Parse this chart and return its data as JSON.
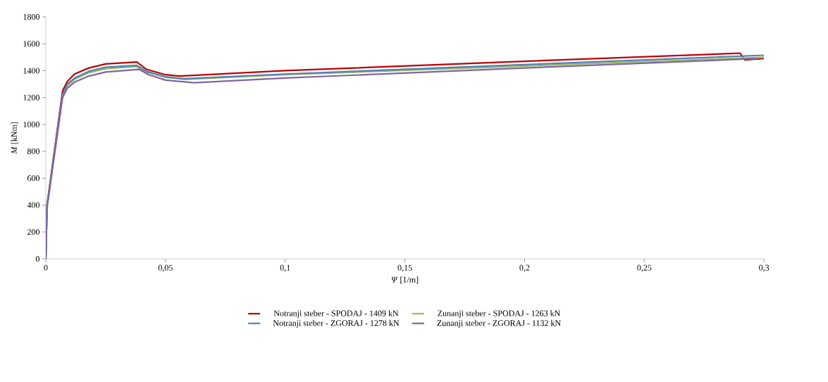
{
  "chart_data": {
    "type": "line",
    "xlabel": "*Ψ* [1/m]",
    "ylabel": "*M* [kNm]",
    "xlim": [
      0,
      0.3
    ],
    "ylim": [
      0,
      1800
    ],
    "xticks": [
      0,
      {
        "value": 0.05,
        "label": "0,05"
      },
      {
        "value": 0.1,
        "label": "0,1"
      },
      {
        "value": 0.15,
        "label": "0,15"
      },
      {
        "value": 0.2,
        "label": "0,2"
      },
      {
        "value": 0.25,
        "label": "0,25"
      },
      {
        "value": 0.3,
        "label": "0,3"
      }
    ],
    "yticks": [
      0,
      200,
      400,
      600,
      800,
      1000,
      1200,
      1400,
      1600,
      1800
    ],
    "grid": false,
    "legend": "bottom",
    "marker": "none",
    "line_style": "solid",
    "series": [
      {
        "name": "Notranji steber - SPODAJ - 1409 kN",
        "color": "#c00000",
        "x": [
          0,
          0.0005,
          0.007,
          0.009,
          0.012,
          0.018,
          0.025,
          0.038,
          0.042,
          0.05,
          0.056,
          0.1,
          0.2,
          0.29,
          0.292,
          0.3
        ],
        "values": [
          0,
          400,
          1250,
          1320,
          1375,
          1420,
          1450,
          1465,
          1410,
          1370,
          1360,
          1400,
          1470,
          1530,
          1480,
          1490
        ]
      },
      {
        "name": "Zunanji steber - SPODAJ - 1263 kN",
        "color": "#9bbb59",
        "x": [
          0,
          0.0005,
          0.007,
          0.009,
          0.012,
          0.018,
          0.025,
          0.038,
          0.042,
          0.05,
          0.058,
          0.1,
          0.2,
          0.3
        ],
        "values": [
          0,
          390,
          1220,
          1290,
          1335,
          1385,
          1415,
          1430,
          1390,
          1350,
          1335,
          1370,
          1435,
          1500
        ]
      },
      {
        "name": "Notranji steber - ZGORAJ - 1278 kN",
        "color": "#4f81bd",
        "x": [
          0,
          0.0005,
          0.007,
          0.009,
          0.012,
          0.018,
          0.025,
          0.038,
          0.042,
          0.05,
          0.058,
          0.1,
          0.2,
          0.3
        ],
        "values": [
          0,
          390,
          1225,
          1300,
          1345,
          1395,
          1425,
          1440,
          1395,
          1355,
          1340,
          1375,
          1445,
          1515
        ]
      },
      {
        "name": "Zunanji steber - ZGORAJ - 1132 kN",
        "color": "#8064a2",
        "x": [
          0,
          0.0005,
          0.007,
          0.009,
          0.012,
          0.018,
          0.025,
          0.039,
          0.043,
          0.05,
          0.062,
          0.1,
          0.2,
          0.297
        ],
        "values": [
          0,
          380,
          1200,
          1270,
          1315,
          1360,
          1390,
          1410,
          1370,
          1330,
          1310,
          1345,
          1420,
          1490
        ]
      }
    ]
  }
}
